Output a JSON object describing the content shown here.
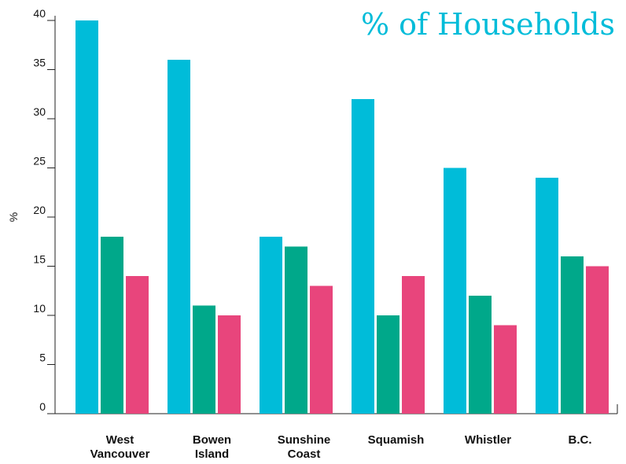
{
  "chart_data": {
    "type": "bar",
    "title": "% of Households",
    "y_label": "%",
    "categories": [
      "West Vancouver",
      "Bowen Island",
      "Sunshine Coast",
      "Squamish",
      "Whistler",
      "B.C."
    ],
    "series": [
      {
        "color": "#00bcd9",
        "values": [
          40,
          36,
          18,
          32,
          25,
          24
        ]
      },
      {
        "color": "#00a88a",
        "values": [
          18,
          11,
          17,
          10,
          12,
          16
        ]
      },
      {
        "color": "#e8457c",
        "values": [
          14,
          10,
          13,
          14,
          9,
          15
        ]
      }
    ],
    "ylim": [
      0,
      40
    ],
    "yticks": [
      0,
      5,
      10,
      15,
      20,
      25,
      30,
      35,
      40
    ],
    "grid": false
  }
}
